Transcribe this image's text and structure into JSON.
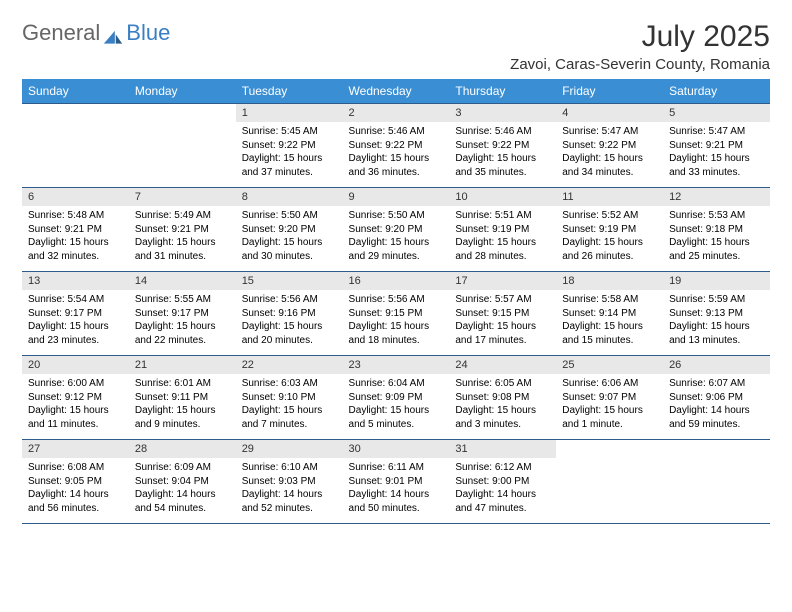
{
  "brand": {
    "part1": "General",
    "part2": "Blue"
  },
  "title": "July 2025",
  "location": "Zavoi, Caras-Severin County, Romania",
  "colors": {
    "header_bg": "#3a8fd4",
    "header_text": "#ffffff",
    "daynum_bg": "#e8e8e8",
    "row_border": "#2d5c8a",
    "brand_blue": "#3a7fc4",
    "brand_gray": "#666666"
  },
  "weekdays": [
    "Sunday",
    "Monday",
    "Tuesday",
    "Wednesday",
    "Thursday",
    "Friday",
    "Saturday"
  ],
  "weeks": [
    [
      null,
      null,
      {
        "n": "1",
        "sr": "5:45 AM",
        "ss": "9:22 PM",
        "dl": "15 hours and 37 minutes."
      },
      {
        "n": "2",
        "sr": "5:46 AM",
        "ss": "9:22 PM",
        "dl": "15 hours and 36 minutes."
      },
      {
        "n": "3",
        "sr": "5:46 AM",
        "ss": "9:22 PM",
        "dl": "15 hours and 35 minutes."
      },
      {
        "n": "4",
        "sr": "5:47 AM",
        "ss": "9:22 PM",
        "dl": "15 hours and 34 minutes."
      },
      {
        "n": "5",
        "sr": "5:47 AM",
        "ss": "9:21 PM",
        "dl": "15 hours and 33 minutes."
      }
    ],
    [
      {
        "n": "6",
        "sr": "5:48 AM",
        "ss": "9:21 PM",
        "dl": "15 hours and 32 minutes."
      },
      {
        "n": "7",
        "sr": "5:49 AM",
        "ss": "9:21 PM",
        "dl": "15 hours and 31 minutes."
      },
      {
        "n": "8",
        "sr": "5:50 AM",
        "ss": "9:20 PM",
        "dl": "15 hours and 30 minutes."
      },
      {
        "n": "9",
        "sr": "5:50 AM",
        "ss": "9:20 PM",
        "dl": "15 hours and 29 minutes."
      },
      {
        "n": "10",
        "sr": "5:51 AM",
        "ss": "9:19 PM",
        "dl": "15 hours and 28 minutes."
      },
      {
        "n": "11",
        "sr": "5:52 AM",
        "ss": "9:19 PM",
        "dl": "15 hours and 26 minutes."
      },
      {
        "n": "12",
        "sr": "5:53 AM",
        "ss": "9:18 PM",
        "dl": "15 hours and 25 minutes."
      }
    ],
    [
      {
        "n": "13",
        "sr": "5:54 AM",
        "ss": "9:17 PM",
        "dl": "15 hours and 23 minutes."
      },
      {
        "n": "14",
        "sr": "5:55 AM",
        "ss": "9:17 PM",
        "dl": "15 hours and 22 minutes."
      },
      {
        "n": "15",
        "sr": "5:56 AM",
        "ss": "9:16 PM",
        "dl": "15 hours and 20 minutes."
      },
      {
        "n": "16",
        "sr": "5:56 AM",
        "ss": "9:15 PM",
        "dl": "15 hours and 18 minutes."
      },
      {
        "n": "17",
        "sr": "5:57 AM",
        "ss": "9:15 PM",
        "dl": "15 hours and 17 minutes."
      },
      {
        "n": "18",
        "sr": "5:58 AM",
        "ss": "9:14 PM",
        "dl": "15 hours and 15 minutes."
      },
      {
        "n": "19",
        "sr": "5:59 AM",
        "ss": "9:13 PM",
        "dl": "15 hours and 13 minutes."
      }
    ],
    [
      {
        "n": "20",
        "sr": "6:00 AM",
        "ss": "9:12 PM",
        "dl": "15 hours and 11 minutes."
      },
      {
        "n": "21",
        "sr": "6:01 AM",
        "ss": "9:11 PM",
        "dl": "15 hours and 9 minutes."
      },
      {
        "n": "22",
        "sr": "6:03 AM",
        "ss": "9:10 PM",
        "dl": "15 hours and 7 minutes."
      },
      {
        "n": "23",
        "sr": "6:04 AM",
        "ss": "9:09 PM",
        "dl": "15 hours and 5 minutes."
      },
      {
        "n": "24",
        "sr": "6:05 AM",
        "ss": "9:08 PM",
        "dl": "15 hours and 3 minutes."
      },
      {
        "n": "25",
        "sr": "6:06 AM",
        "ss": "9:07 PM",
        "dl": "15 hours and 1 minute."
      },
      {
        "n": "26",
        "sr": "6:07 AM",
        "ss": "9:06 PM",
        "dl": "14 hours and 59 minutes."
      }
    ],
    [
      {
        "n": "27",
        "sr": "6:08 AM",
        "ss": "9:05 PM",
        "dl": "14 hours and 56 minutes."
      },
      {
        "n": "28",
        "sr": "6:09 AM",
        "ss": "9:04 PM",
        "dl": "14 hours and 54 minutes."
      },
      {
        "n": "29",
        "sr": "6:10 AM",
        "ss": "9:03 PM",
        "dl": "14 hours and 52 minutes."
      },
      {
        "n": "30",
        "sr": "6:11 AM",
        "ss": "9:01 PM",
        "dl": "14 hours and 50 minutes."
      },
      {
        "n": "31",
        "sr": "6:12 AM",
        "ss": "9:00 PM",
        "dl": "14 hours and 47 minutes."
      },
      null,
      null
    ]
  ],
  "labels": {
    "sunrise": "Sunrise:",
    "sunset": "Sunset:",
    "daylight": "Daylight:"
  }
}
